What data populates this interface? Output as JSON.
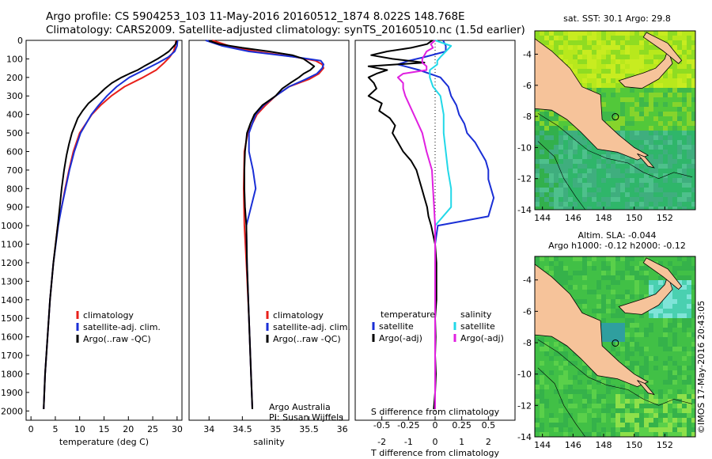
{
  "header": {
    "line1": "Argo profile: CS 5904253_103 11-May-2016 20160512_1874 8.022S 148.768E",
    "line2": "Climatology: CARS2009. Satellite-adjusted climatology: synTS_20160510.nc (1.5d earlier)"
  },
  "side_stamp": "©IMOS 17-May-2016 20:43:05",
  "colors": {
    "climatology": "#e8201a",
    "satellite": "#1a2fd6",
    "argo": "#000000",
    "salinity_satellite": "#22d8e8",
    "salinity_argo": "#e020e0",
    "land": "#f6c39a"
  },
  "chart_data": [
    {
      "type": "line",
      "panel": "temperature",
      "xlabel": "temperature (deg C)",
      "xlim": [
        -1,
        31
      ],
      "ylim": [
        0,
        2050
      ],
      "y_reversed": true,
      "xticks": [
        "0",
        "5",
        "10",
        "15",
        "20",
        "25",
        "30"
      ],
      "yticks": [
        "0",
        "100",
        "200",
        "300",
        "400",
        "500",
        "600",
        "700",
        "800",
        "900",
        "1000",
        "1100",
        "1200",
        "1300",
        "1400",
        "1500",
        "1600",
        "1700",
        "1800",
        "1900",
        "2000"
      ],
      "legend": [
        "climatology",
        "satellite-adj. clim.",
        "Argo(..raw -QC)"
      ],
      "series": [
        {
          "name": "climatology",
          "depth": [
            0,
            30,
            60,
            90,
            120,
            160,
            200,
            250,
            300,
            350,
            400,
            500,
            600,
            700,
            800,
            900,
            1000,
            1200,
            1400,
            1600,
            1800,
            1990
          ],
          "values": [
            29.8,
            29.6,
            29.3,
            28.5,
            27.4,
            25.7,
            23.0,
            19.2,
            16.5,
            14.3,
            12.5,
            10.0,
            8.7,
            7.8,
            7.0,
            6.3,
            5.5,
            4.6,
            3.9,
            3.4,
            2.9,
            2.6
          ]
        },
        {
          "name": "satellite-adj. clim.",
          "depth": [
            0,
            30,
            60,
            90,
            120,
            160,
            200,
            250,
            300,
            350,
            400,
            500,
            600,
            700,
            800,
            900,
            1000,
            1200,
            1400,
            1600,
            1800,
            1990
          ],
          "values": [
            30.1,
            30.0,
            29.5,
            28.2,
            26.2,
            23.2,
            20.2,
            17.6,
            15.6,
            13.9,
            12.4,
            10.2,
            8.9,
            7.9,
            7.1,
            6.3,
            5.6,
            4.6,
            3.9,
            3.4,
            2.9,
            2.6
          ]
        },
        {
          "name": "Argo(..raw -QC)",
          "depth": [
            2,
            20,
            40,
            60,
            80,
            100,
            120,
            140,
            160,
            180,
            200,
            230,
            260,
            300,
            340,
            380,
            420,
            460,
            500,
            560,
            620,
            700,
            800,
            900,
            1000,
            1200,
            1400,
            1600,
            1800,
            1990
          ],
          "values": [
            29.9,
            29.7,
            29.0,
            28.3,
            27.2,
            26.0,
            24.6,
            23.2,
            21.9,
            20.2,
            18.6,
            16.6,
            15.2,
            13.6,
            11.8,
            10.6,
            9.6,
            9.0,
            8.4,
            7.8,
            7.3,
            6.8,
            6.3,
            5.9,
            5.5,
            4.6,
            3.9,
            3.4,
            2.9,
            2.6
          ]
        }
      ]
    },
    {
      "type": "line",
      "panel": "salinity",
      "xlabel": "salinity",
      "xlim": [
        33.7,
        36.1
      ],
      "ylim": [
        0,
        2050
      ],
      "y_reversed": true,
      "xticks": [
        "34",
        "34.5",
        "35",
        "35.5",
        "36"
      ],
      "legend": [
        "climatology",
        "satellite-adj. clim.",
        "Argo(..raw -QC)"
      ],
      "annotations": [
        "Argo Australia",
        "PI: Susan Wijffels"
      ],
      "series": [
        {
          "name": "climatology",
          "depth": [
            0,
            30,
            60,
            90,
            110,
            130,
            150,
            180,
            210,
            250,
            300,
            350,
            400,
            500,
            600,
            800,
            1000,
            1200,
            1500,
            1800,
            1990
          ],
          "values": [
            34.05,
            34.3,
            34.7,
            35.3,
            35.6,
            35.7,
            35.72,
            35.65,
            35.5,
            35.2,
            35.0,
            34.85,
            34.72,
            34.58,
            34.53,
            34.52,
            34.53,
            34.56,
            34.6,
            34.63,
            34.65
          ]
        },
        {
          "name": "satellite-adj. clim.",
          "depth": [
            0,
            30,
            60,
            90,
            110,
            130,
            150,
            180,
            210,
            250,
            300,
            350,
            400,
            500,
            600,
            700,
            800,
            1000,
            1200,
            1500,
            1800,
            1990
          ],
          "values": [
            33.95,
            34.2,
            34.6,
            35.3,
            35.68,
            35.72,
            35.7,
            35.62,
            35.45,
            35.2,
            35.0,
            34.82,
            34.7,
            34.6,
            34.6,
            34.66,
            34.7,
            34.56,
            34.57,
            34.6,
            34.63,
            34.65
          ]
        },
        {
          "name": "Argo(..raw -QC)",
          "depth": [
            2,
            20,
            40,
            60,
            80,
            100,
            120,
            140,
            160,
            180,
            200,
            230,
            260,
            300,
            350,
            400,
            450,
            500,
            600,
            700,
            800,
            900,
            1000,
            1200,
            1500,
            1800,
            1990
          ],
          "values": [
            34.0,
            34.15,
            34.5,
            34.9,
            35.25,
            35.42,
            35.5,
            35.58,
            35.52,
            35.42,
            35.35,
            35.22,
            35.1,
            35.0,
            34.8,
            34.68,
            34.62,
            34.57,
            34.54,
            34.53,
            34.53,
            34.54,
            34.56,
            34.57,
            34.6,
            34.63,
            34.65
          ]
        }
      ]
    },
    {
      "type": "line",
      "panel": "difference",
      "xlabel": "T difference from climatology",
      "xlabel_top": "S difference from climatology",
      "xlim": [
        -3,
        3
      ],
      "ylim": [
        0,
        2050
      ],
      "y_reversed": true,
      "xticks": [
        "-2",
        "-1",
        "0",
        "1",
        "2"
      ],
      "xticks_s": [
        "-0.5",
        "-0.25",
        "0",
        "0.25",
        "0.5"
      ],
      "legend_headers": [
        "temperature",
        "salinity"
      ],
      "legend": [
        "satellite",
        "Argo(-adj)",
        "satellite",
        "Argo(-adj)"
      ],
      "series": [
        {
          "name": "satellite",
          "quantity": "temperature",
          "depth": [
            0,
            30,
            60,
            90,
            110,
            130,
            160,
            200,
            250,
            300,
            350,
            400,
            450,
            500,
            550,
            600,
            650,
            700,
            750,
            800,
            850,
            900,
            950,
            1000,
            1100,
            1300,
            1600,
            1990
          ],
          "values": [
            0.3,
            0.4,
            0.4,
            -0.4,
            -1.0,
            -1.4,
            -0.6,
            0.2,
            0.5,
            0.6,
            0.8,
            0.9,
            1.1,
            1.2,
            1.5,
            1.7,
            1.9,
            2.0,
            2.0,
            2.1,
            2.2,
            2.1,
            2.0,
            0.1,
            0.0,
            0.0,
            0.0,
            0.0
          ]
        },
        {
          "name": "Argo(-adj)",
          "quantity": "temperature",
          "depth": [
            0,
            20,
            40,
            60,
            80,
            100,
            120,
            140,
            160,
            180,
            200,
            230,
            260,
            300,
            340,
            380,
            420,
            460,
            500,
            550,
            600,
            650,
            700,
            750,
            800,
            850,
            900,
            950,
            1000,
            1100,
            1200,
            1300,
            1400,
            1500,
            1600,
            1700,
            1800,
            1900,
            1990
          ],
          "values": [
            -0.1,
            -0.3,
            -0.9,
            -1.8,
            -2.4,
            -1.6,
            -0.4,
            -2.5,
            -1.8,
            -2.2,
            -2.5,
            -2.3,
            -2.2,
            -2.5,
            -2.0,
            -2.1,
            -1.7,
            -1.5,
            -1.6,
            -1.4,
            -1.2,
            -0.9,
            -0.7,
            -0.6,
            -0.5,
            -0.4,
            -0.3,
            -0.25,
            -0.15,
            0.0,
            0.05,
            0.05,
            0.05,
            0.0,
            0.02,
            0.0,
            0.03,
            0.0,
            -0.05
          ]
        },
        {
          "name": "satellite",
          "quantity": "salinity",
          "depth": [
            0,
            30,
            60,
            90,
            110,
            130,
            160,
            200,
            250,
            300,
            400,
            500,
            600,
            700,
            800,
            900,
            1000,
            1100,
            1300,
            1600,
            1990
          ],
          "values": [
            0.0,
            0.15,
            0.1,
            0.05,
            0.02,
            0.02,
            -0.05,
            -0.05,
            -0.02,
            0.05,
            0.08,
            0.08,
            0.1,
            0.12,
            0.15,
            0.15,
            0.0,
            0.0,
            0.0,
            0.0,
            0.0
          ]
        },
        {
          "name": "Argo(-adj)",
          "quantity": "salinity",
          "depth": [
            0,
            20,
            40,
            60,
            80,
            100,
            120,
            140,
            160,
            180,
            200,
            230,
            260,
            300,
            400,
            500,
            600,
            700,
            800,
            900,
            1000,
            1100,
            1300,
            1600,
            1990
          ],
          "values": [
            0.0,
            -0.04,
            -0.02,
            -0.08,
            -0.1,
            -0.12,
            -0.12,
            -0.08,
            -0.08,
            -0.3,
            -0.35,
            -0.3,
            -0.3,
            -0.28,
            -0.2,
            -0.12,
            -0.08,
            -0.03,
            -0.02,
            -0.01,
            0.0,
            0.0,
            0.0,
            0.0,
            0.0
          ]
        }
      ]
    },
    {
      "type": "heatmap",
      "panel": "sst_map",
      "title": "sat. SST: 30.1  Argo: 29.8",
      "xlim": [
        143.5,
        154
      ],
      "ylim": [
        -14,
        -2.5
      ],
      "xticks": [
        "144",
        "146",
        "148",
        "150",
        "152"
      ],
      "yticks": [
        "-4",
        "-6",
        "-8",
        "-10",
        "-12",
        "-14"
      ],
      "marker": {
        "lon": 148.768,
        "lat": -8.022
      }
    },
    {
      "type": "heatmap",
      "panel": "sla_map",
      "title": "Altim. SLA: -0.044",
      "subtitle": "Argo h1000: -0.12 h2000: -0.12",
      "xlim": [
        143.5,
        154
      ],
      "ylim": [
        -14,
        -2.5
      ],
      "xticks": [
        "144",
        "146",
        "148",
        "150",
        "152"
      ],
      "yticks": [
        "-4",
        "-6",
        "-8",
        "-10",
        "-12",
        "-14"
      ],
      "marker": {
        "lon": 148.768,
        "lat": -8.022
      }
    }
  ]
}
